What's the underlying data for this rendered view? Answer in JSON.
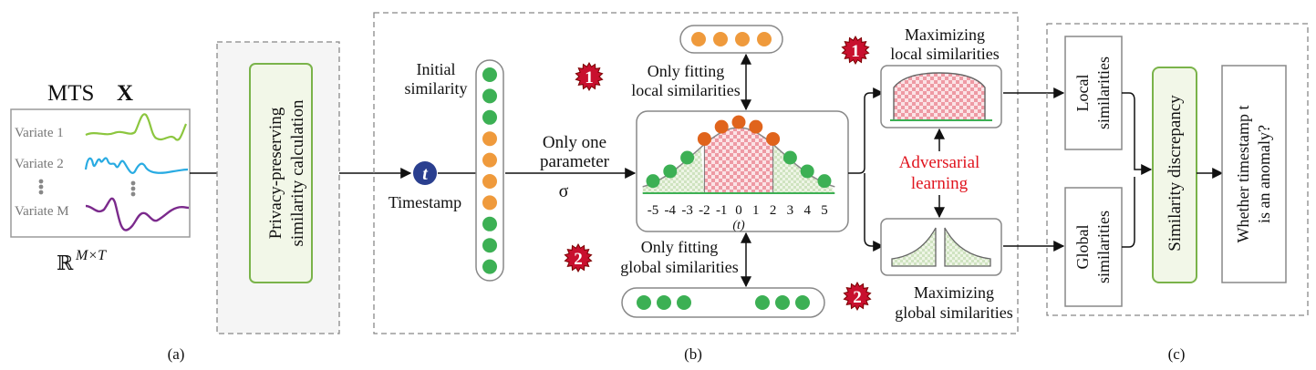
{
  "panel_a": {
    "mts_label": "MTS",
    "x_symbol": "X",
    "variates": [
      "Variate 1",
      "Variate 2",
      "Variate M"
    ],
    "space": "ℝ",
    "space_sup": "M×T",
    "caption": "(a)"
  },
  "privacy": {
    "line1": "Privacy-preserving",
    "line2": "similarity calculation"
  },
  "panel_b": {
    "timestamp_symbol": "t",
    "timestamp_label": "Timestamp",
    "initial_sim_1": "Initial",
    "initial_sim_2": "similarity",
    "param_1": "Only one",
    "param_2": "parameter",
    "sigma": "σ",
    "badge1": "1",
    "badge2": "2",
    "fit_local_1": "Only fitting",
    "fit_local_2": "local similarities",
    "fit_global_1": "Only fitting",
    "fit_global_2": "global similarities",
    "axis_ticks": [
      "-5",
      "-4",
      "-3",
      "-2",
      "-1",
      "0",
      "1",
      "2",
      "3",
      "4",
      "5"
    ],
    "axis_label": "(t)",
    "max_local_1": "Maximizing",
    "max_local_2": "local similarities",
    "max_global_1": "Maximizing",
    "max_global_2": "global similarities",
    "adv_1": "Adversarial",
    "adv_2": "learning",
    "caption": "(b)"
  },
  "panel_c": {
    "local_1": "Local",
    "local_2": "similarities",
    "global_1": "Global",
    "global_2": "similarities",
    "discrepancy": "Similarity discrepancy",
    "question_1": "Whether timestamp t",
    "question_2": "is an anomaly?",
    "caption": "(c)"
  },
  "colors": {
    "green": "#3cb054",
    "orange": "#ef9a3c",
    "dark_orange": "#e0641c",
    "navy": "#2a3f8f",
    "badge_red": "#c8102e",
    "adversarial_red": "#e0141e",
    "v1": "#8cc63f",
    "v2": "#29abe2",
    "vm": "#7b2a8c",
    "pink": "#f2b8be",
    "light_green_bg": "#f3f7ec"
  }
}
